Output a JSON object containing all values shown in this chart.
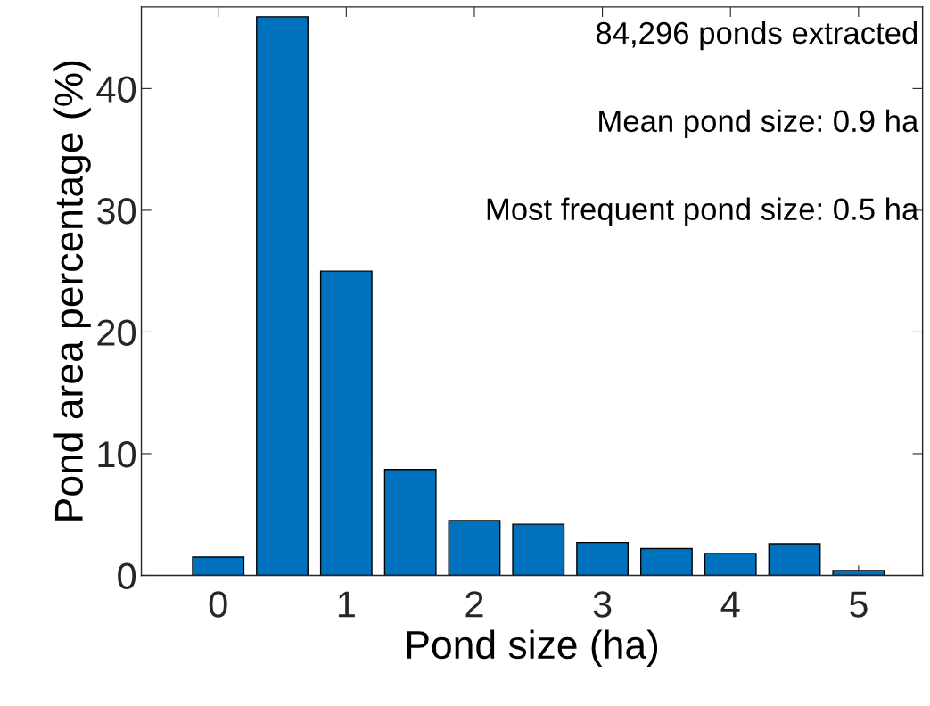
{
  "chart_data": {
    "type": "bar",
    "xlabel": "Pond size (ha)",
    "ylabel": "Pond area percentage (%)",
    "x": [
      0,
      0.5,
      1,
      1.5,
      2,
      2.5,
      3,
      3.5,
      4,
      4.5,
      5
    ],
    "values": [
      1.5,
      45.9,
      25.0,
      8.7,
      4.5,
      4.2,
      2.7,
      2.2,
      1.8,
      2.6,
      0.4
    ],
    "color": "#0072bd",
    "xlim": [
      -0.6,
      5.5
    ],
    "xticks": [
      0,
      1,
      2,
      3,
      4,
      5
    ],
    "ylim": [
      0,
      46.7
    ],
    "yticks": [
      0,
      10,
      20,
      30,
      40
    ],
    "grid": false,
    "legend": false,
    "annotations": [
      "84,296 ponds extracted",
      "Mean pond size: 0.9 ha",
      "Most frequent pond size: 0.5 ha"
    ]
  }
}
